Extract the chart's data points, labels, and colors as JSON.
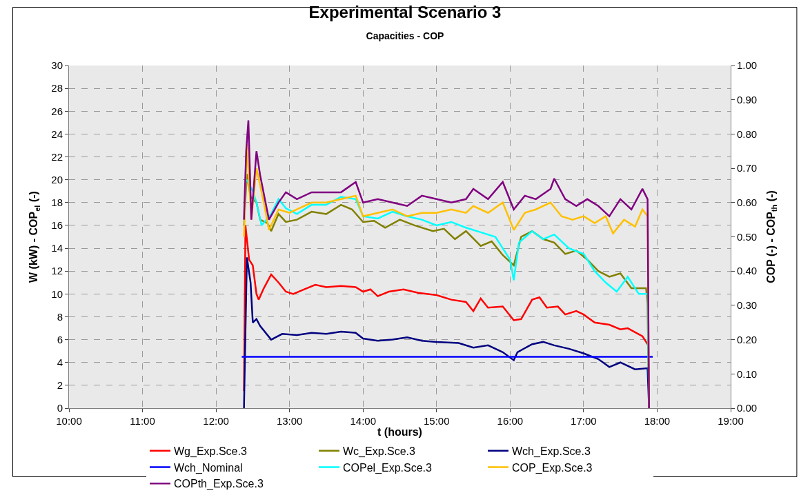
{
  "chart_data": {
    "type": "line",
    "title": "Experimental Scenario 3",
    "subtitle": "Capacities - COP",
    "xlabel": "t (hours)",
    "ylabel": "W (kW) - COP$_{el}$ (-)",
    "y2label": "COP (-) - COP$_{th}$ (-)",
    "xlim": [
      10,
      19
    ],
    "xticks": [
      {
        "value": 10,
        "label": "10:00"
      },
      {
        "value": 11,
        "label": "11:00"
      },
      {
        "value": 12,
        "label": "12:00"
      },
      {
        "value": 13,
        "label": "13:00"
      },
      {
        "value": 14,
        "label": "14:00"
      },
      {
        "value": 15,
        "label": "15:00"
      },
      {
        "value": 16,
        "label": "16:00"
      },
      {
        "value": 17,
        "label": "17:00"
      },
      {
        "value": 18,
        "label": "18:00"
      },
      {
        "value": 19,
        "label": "19:00"
      }
    ],
    "ylim": [
      0,
      30
    ],
    "yticks": [
      0,
      2,
      4,
      6,
      8,
      10,
      12,
      14,
      16,
      18,
      20,
      22,
      24,
      26,
      28,
      30
    ],
    "y2lim": [
      0,
      1
    ],
    "y2ticks": [
      {
        "value": 0,
        "label": "0.00"
      },
      {
        "value": 0.1,
        "label": "0.10"
      },
      {
        "value": 0.2,
        "label": "0.20"
      },
      {
        "value": 0.3,
        "label": "0.30"
      },
      {
        "value": 0.4,
        "label": "0.40"
      },
      {
        "value": 0.5,
        "label": "0.50"
      },
      {
        "value": 0.6,
        "label": "0.60"
      },
      {
        "value": 0.7,
        "label": "0.70"
      },
      {
        "value": 0.8,
        "label": "0.80"
      },
      {
        "value": 0.9,
        "label": "0.90"
      },
      {
        "value": 1,
        "label": "1.00"
      }
    ],
    "grid": true,
    "legend": "bottom",
    "marker": "none",
    "line_style": "solid",
    "series": [
      {
        "name": "Wg_Exp.Sce.3",
        "color": "#ff0000",
        "x": [
          12.38,
          12.4,
          12.45,
          12.5,
          12.55,
          12.58,
          12.65,
          12.75,
          12.85,
          12.95,
          13.05,
          13.2,
          13.35,
          13.5,
          13.7,
          13.9,
          14.0,
          14.1,
          14.2,
          14.35,
          14.55,
          14.75,
          15.0,
          15.2,
          15.4,
          15.5,
          15.6,
          15.7,
          15.9,
          16.05,
          16.15,
          16.3,
          16.4,
          16.5,
          16.65,
          16.75,
          16.9,
          17.0,
          17.15,
          17.35,
          17.5,
          17.6,
          17.8,
          17.88,
          17.89
        ],
        "values": [
          1.5,
          16,
          13,
          12.5,
          10,
          9.5,
          10.5,
          11.7,
          11,
          10.2,
          10.0,
          10.4,
          10.8,
          10.6,
          10.7,
          10.6,
          10.2,
          10.4,
          9.8,
          10.2,
          10.4,
          10.1,
          9.9,
          9.5,
          9.3,
          8.5,
          9.6,
          8.8,
          8.9,
          7.7,
          7.8,
          9.5,
          9.7,
          8.8,
          8.9,
          8.2,
          8.5,
          8.2,
          7.5,
          7.3,
          6.9,
          7.0,
          6.3,
          5.5,
          0
        ]
      },
      {
        "name": "Wc_Exp.Sce.3",
        "color": "#808000",
        "x": [
          12.38,
          12.42,
          12.47,
          12.55,
          12.6,
          12.7,
          12.75,
          12.85,
          12.95,
          13.1,
          13.3,
          13.5,
          13.7,
          13.85,
          14.0,
          14.15,
          14.3,
          14.5,
          14.7,
          14.95,
          15.1,
          15.25,
          15.4,
          15.6,
          15.75,
          15.9,
          16.05,
          16.15,
          16.3,
          16.45,
          16.6,
          16.75,
          16.9,
          17.05,
          17.2,
          17.35,
          17.5,
          17.65,
          17.85,
          17.87,
          17.89
        ],
        "values": [
          16,
          20.5,
          18.5,
          18,
          16.5,
          16.2,
          15.5,
          17,
          16.3,
          16.5,
          17.2,
          17.0,
          17.8,
          17.4,
          16.3,
          16.4,
          15.8,
          16.5,
          16.0,
          15.5,
          15.7,
          14.8,
          15.5,
          14.2,
          14.6,
          13.4,
          12.5,
          15.0,
          15.5,
          14.8,
          14.5,
          13.5,
          13.8,
          13.0,
          12.0,
          11.5,
          11.8,
          10.5,
          10.5,
          9.0,
          0
        ]
      },
      {
        "name": "Wch_Exp.Sce.3",
        "color": "#000080",
        "x": [
          12.38,
          12.42,
          12.47,
          12.5,
          12.55,
          12.6,
          12.75,
          12.9,
          13.1,
          13.3,
          13.5,
          13.7,
          13.9,
          14.0,
          14.2,
          14.4,
          14.6,
          14.8,
          15.0,
          15.3,
          15.5,
          15.7,
          15.9,
          16.05,
          16.1,
          16.3,
          16.45,
          16.6,
          16.8,
          17.0,
          17.2,
          17.35,
          17.5,
          17.7,
          17.87,
          17.89
        ],
        "values": [
          0,
          13.2,
          11,
          7.5,
          7.8,
          7.2,
          6.0,
          6.5,
          6.4,
          6.6,
          6.5,
          6.7,
          6.6,
          6.1,
          5.9,
          6.0,
          6.2,
          5.9,
          5.8,
          5.7,
          5.3,
          5.5,
          4.9,
          4.2,
          4.9,
          5.6,
          5.8,
          5.5,
          5.2,
          4.8,
          4.3,
          3.6,
          4.0,
          3.4,
          3.5,
          0
        ]
      },
      {
        "name": "Wch_Nominal",
        "color": "#0000ff",
        "x": [
          12.35,
          17.94
        ],
        "values": [
          4.5,
          4.5
        ]
      },
      {
        "name": "COPel_Exp.Sce.3",
        "color": "#00ffff",
        "x": [
          12.42,
          12.5,
          12.55,
          12.62,
          12.75,
          12.85,
          12.95,
          13.1,
          13.3,
          13.5,
          13.7,
          13.9,
          14.0,
          14.2,
          14.4,
          14.6,
          14.8,
          15.0,
          15.2,
          15.4,
          15.6,
          15.8,
          16.0,
          16.05,
          16.12,
          16.3,
          16.45,
          16.6,
          16.8,
          17.0,
          17.15,
          17.3,
          17.45,
          17.6,
          17.75,
          17.87,
          17.89
        ],
        "values": [
          20,
          19,
          18,
          16,
          17,
          18.3,
          17.5,
          17.0,
          17.8,
          17.8,
          18.5,
          18.3,
          16.8,
          16.6,
          17.2,
          16.8,
          16.5,
          16.0,
          16.3,
          15.8,
          15.4,
          15.0,
          13.0,
          11.2,
          14.5,
          15.5,
          14.8,
          15.2,
          14.0,
          13.5,
          12.0,
          11.0,
          10.2,
          11.5,
          10.0,
          10.0,
          0
        ]
      },
      {
        "name": "COP_Exp.Sce.3",
        "color": "#ffc000",
        "axis": "y2",
        "x": [
          12.38,
          12.42,
          12.48,
          12.55,
          12.65,
          12.72,
          12.85,
          13.0,
          13.1,
          13.3,
          13.5,
          13.7,
          13.9,
          14.0,
          14.2,
          14.4,
          14.6,
          14.8,
          15.0,
          15.2,
          15.4,
          15.5,
          15.7,
          15.9,
          16.05,
          16.2,
          16.35,
          16.55,
          16.7,
          16.85,
          17.0,
          17.15,
          17.3,
          17.4,
          17.55,
          17.7,
          17.8,
          17.87,
          17.89
        ],
        "values": [
          0.5,
          0.77,
          0.55,
          0.7,
          0.6,
          0.52,
          0.58,
          0.57,
          0.58,
          0.6,
          0.6,
          0.61,
          0.62,
          0.56,
          0.57,
          0.58,
          0.56,
          0.57,
          0.57,
          0.58,
          0.57,
          0.59,
          0.57,
          0.6,
          0.52,
          0.57,
          0.58,
          0.6,
          0.56,
          0.55,
          0.56,
          0.54,
          0.56,
          0.51,
          0.55,
          0.53,
          0.58,
          0.56,
          0
        ]
      },
      {
        "name": "COPth_Exp.Sce.3",
        "color": "#800080",
        "axis": "y2",
        "x": [
          12.38,
          12.41,
          12.44,
          12.48,
          12.55,
          12.6,
          12.72,
          12.85,
          12.95,
          13.1,
          13.3,
          13.5,
          13.7,
          13.9,
          14.0,
          14.2,
          14.4,
          14.6,
          14.8,
          15.0,
          15.2,
          15.4,
          15.5,
          15.7,
          15.9,
          16.05,
          16.2,
          16.35,
          16.55,
          16.6,
          16.75,
          16.9,
          17.05,
          17.2,
          17.35,
          17.5,
          17.65,
          17.8,
          17.87,
          17.89
        ],
        "values": [
          0.55,
          0.75,
          0.84,
          0.55,
          0.75,
          0.68,
          0.55,
          0.6,
          0.63,
          0.61,
          0.63,
          0.63,
          0.63,
          0.66,
          0.6,
          0.61,
          0.6,
          0.59,
          0.62,
          0.61,
          0.6,
          0.61,
          0.64,
          0.61,
          0.66,
          0.58,
          0.62,
          0.61,
          0.64,
          0.67,
          0.61,
          0.59,
          0.61,
          0.59,
          0.56,
          0.61,
          0.58,
          0.64,
          0.61,
          0
        ]
      }
    ]
  }
}
